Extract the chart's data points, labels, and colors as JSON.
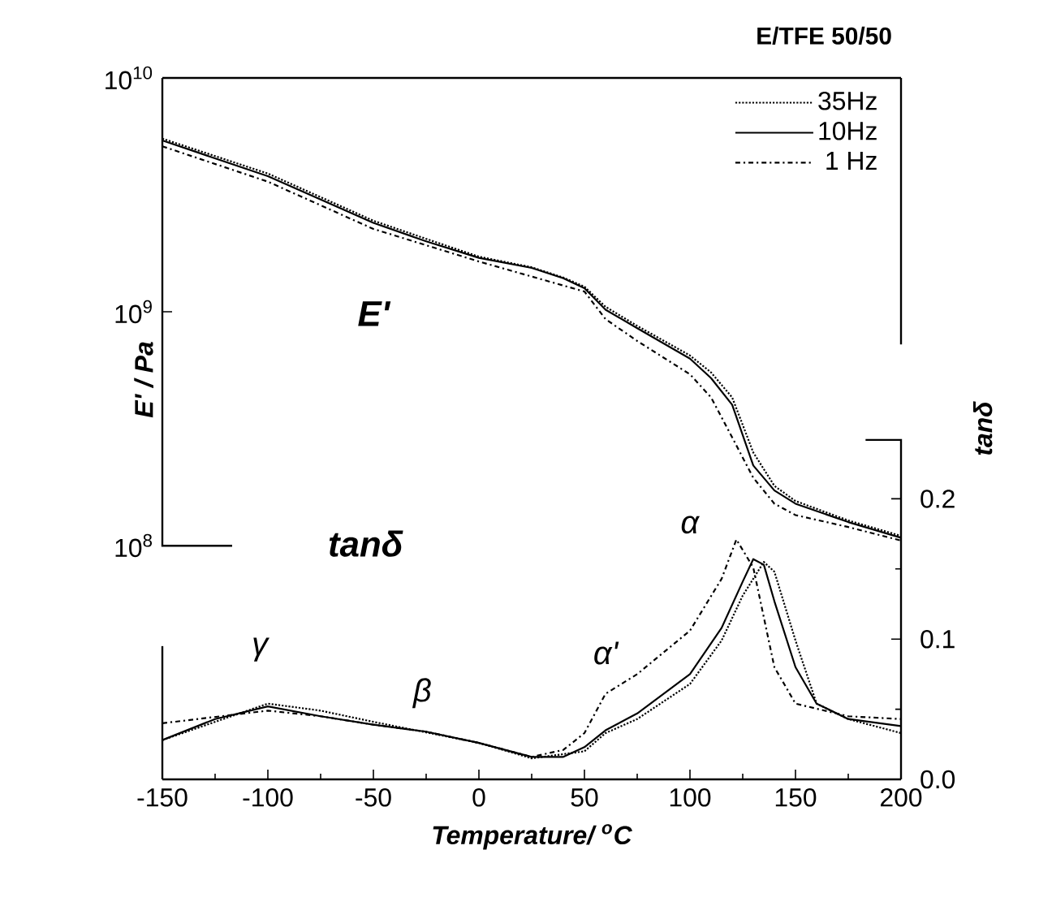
{
  "chart_data": {
    "type": "line",
    "title": "E/TFE 50/50",
    "xlabel": "Temperature/ $^{o}$C",
    "ylabel": "E' / Pa",
    "y2label": "tanδ",
    "annotations": [
      "E'",
      "tanδ",
      "γ",
      "β",
      "α'",
      "α"
    ],
    "xlim": [
      -150,
      200
    ],
    "xticks": [
      -150,
      -100,
      -50,
      0,
      50,
      100,
      150,
      200
    ],
    "log": "y",
    "ylim": [
      10000000,
      10000000000
    ],
    "yticks": [
      {
        "value": 100000000,
        "label": "10$^{8}$"
      },
      {
        "value": 1000000000,
        "label": "10$^{9}$"
      },
      {
        "value": 10000000000,
        "label": "10$^{10}$"
      }
    ],
    "y2lim": [
      0,
      0.5
    ],
    "y2ticks": [
      {
        "value": 0,
        "label": "0.0"
      },
      {
        "value": 0.1,
        "label": "0.1"
      },
      {
        "value": 0.2,
        "label": "0.2"
      }
    ],
    "legend": "top right",
    "series": [
      {
        "name": "35Hz",
        "color": "#000000",
        "line_style": "dotted",
        "x": [
          -150,
          -100,
          -50,
          -25,
          0,
          25,
          40,
          50,
          60,
          75,
          100,
          110,
          120,
          130,
          140,
          150,
          175,
          200
        ],
        "values": [
          5500000000.0,
          3900000000.0,
          2450000000.0,
          2050000000.0,
          1720000000.0,
          1550000000.0,
          1400000000.0,
          1280000000.0,
          1050000000.0,
          870000000.0,
          650000000.0,
          550000000.0,
          430000000.0,
          250000000.0,
          180000000.0,
          155000000.0,
          128000000.0,
          110000000.0
        ]
      },
      {
        "name": "10Hz",
        "color": "#000000",
        "line_style": "solid",
        "x": [
          -150,
          -100,
          -50,
          -25,
          0,
          25,
          40,
          50,
          60,
          75,
          100,
          110,
          120,
          130,
          140,
          150,
          175,
          200
        ],
        "values": [
          5400000000.0,
          3800000000.0,
          2400000000.0,
          2000000000.0,
          1700000000.0,
          1540000000.0,
          1390000000.0,
          1260000000.0,
          1020000000.0,
          850000000.0,
          630000000.0,
          520000000.0,
          400000000.0,
          220000000.0,
          172000000.0,
          151000000.0,
          126000000.0,
          108000000.0
        ]
      },
      {
        "name": "1 Hz",
        "color": "#000000",
        "line_style": "dashdot",
        "x": [
          -150,
          -100,
          -50,
          0,
          50,
          60,
          75,
          100,
          110,
          120,
          130,
          140,
          150,
          175,
          200
        ],
        "values": [
          5100000000.0,
          3600000000.0,
          2260000000.0,
          1640000000.0,
          1220000000.0,
          930000000.0,
          750000000.0,
          540000000.0,
          430000000.0,
          290000000.0,
          195000000.0,
          151000000.0,
          135000000.0,
          120000000.0,
          105000000.0
        ]
      },
      {
        "color": "#000000",
        "line_style": "dotted",
        "axis": "y2",
        "x": [
          -150,
          -100,
          -75,
          -50,
          0,
          25,
          50,
          60,
          75,
          100,
          115,
          125,
          135,
          140,
          150,
          160,
          175,
          200
        ],
        "values": [
          0.028,
          0.054,
          0.049,
          0.041,
          0.026,
          0.015,
          0.02,
          0.033,
          0.043,
          0.068,
          0.099,
          0.131,
          0.155,
          0.148,
          0.099,
          0.054,
          0.043,
          0.033
        ]
      },
      {
        "color": "#000000",
        "line_style": "solid",
        "axis": "y2",
        "x": [
          -150,
          -125,
          -100,
          -75,
          -50,
          -25,
          0,
          25,
          40,
          50,
          60,
          75,
          100,
          115,
          125,
          130,
          135,
          140,
          150,
          160,
          175,
          200
        ],
        "values": [
          0.028,
          0.043,
          0.052,
          0.045,
          0.039,
          0.034,
          0.026,
          0.016,
          0.016,
          0.023,
          0.035,
          0.047,
          0.075,
          0.108,
          0.141,
          0.157,
          0.153,
          0.127,
          0.08,
          0.054,
          0.043,
          0.038
        ]
      },
      {
        "color": "#000000",
        "line_style": "dashdot",
        "axis": "y2",
        "x": [
          -150,
          -100,
          -75,
          -50,
          -25,
          0,
          25,
          40,
          50,
          60,
          75,
          100,
          115,
          122,
          130,
          140,
          150,
          175,
          200
        ],
        "values": [
          0.04,
          0.049,
          0.045,
          0.039,
          0.034,
          0.026,
          0.016,
          0.021,
          0.033,
          0.061,
          0.075,
          0.106,
          0.143,
          0.171,
          0.151,
          0.08,
          0.054,
          0.045,
          0.043
        ]
      }
    ]
  }
}
